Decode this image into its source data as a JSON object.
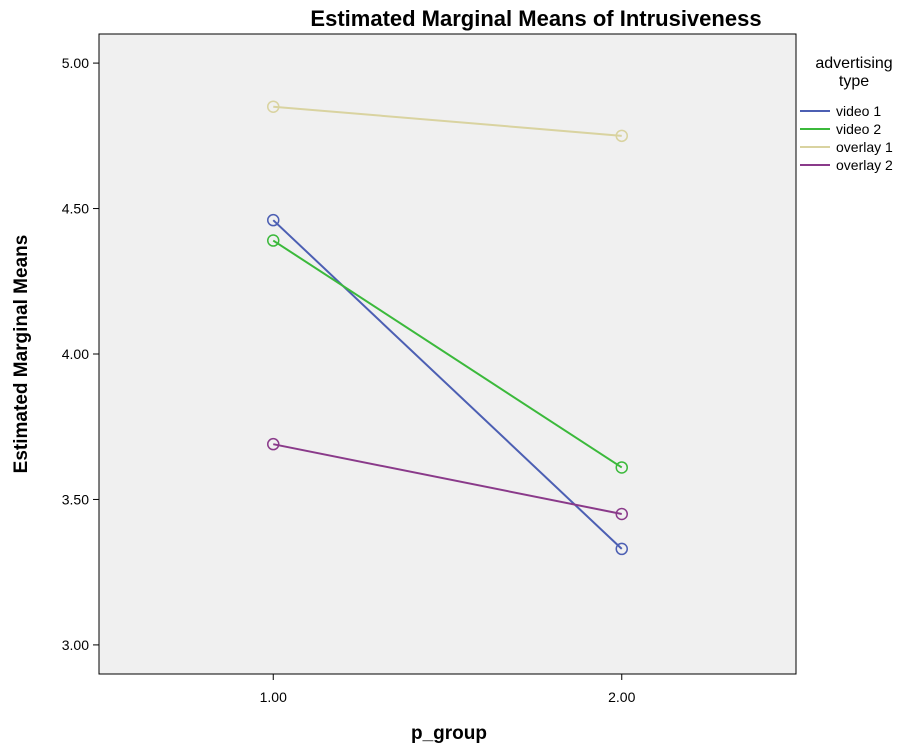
{
  "chart_data": {
    "type": "line",
    "title": "Estimated Marginal Means of Intrusiveness",
    "xlabel": "p_group",
    "ylabel": "Estimated Marginal Means",
    "x": [
      1.0,
      2.0
    ],
    "x_tick_labels": [
      "1.00",
      "2.00"
    ],
    "xlim": [
      0.5,
      2.5
    ],
    "ylim": [
      2.9,
      5.1
    ],
    "y_ticks": [
      3.0,
      3.5,
      4.0,
      4.5,
      5.0
    ],
    "y_tick_labels": [
      "3.00",
      "3.50",
      "4.00",
      "4.50",
      "5.00"
    ],
    "grid": false,
    "legend_title": "advertising type",
    "legend_title_lines": [
      "advertising",
      "type"
    ],
    "legend_position": "right",
    "plot_background": "#f0f0f0",
    "series": [
      {
        "name": "video 1",
        "values": [
          4.46,
          3.33
        ],
        "color": "#4c5fb3"
      },
      {
        "name": "video 2",
        "values": [
          4.39,
          3.61
        ],
        "color": "#3bb93b"
      },
      {
        "name": "overlay 1",
        "values": [
          4.85,
          4.75
        ],
        "color": "#d9d3a0"
      },
      {
        "name": "overlay 2",
        "values": [
          3.69,
          3.45
        ],
        "color": "#8a3a8a"
      }
    ]
  }
}
